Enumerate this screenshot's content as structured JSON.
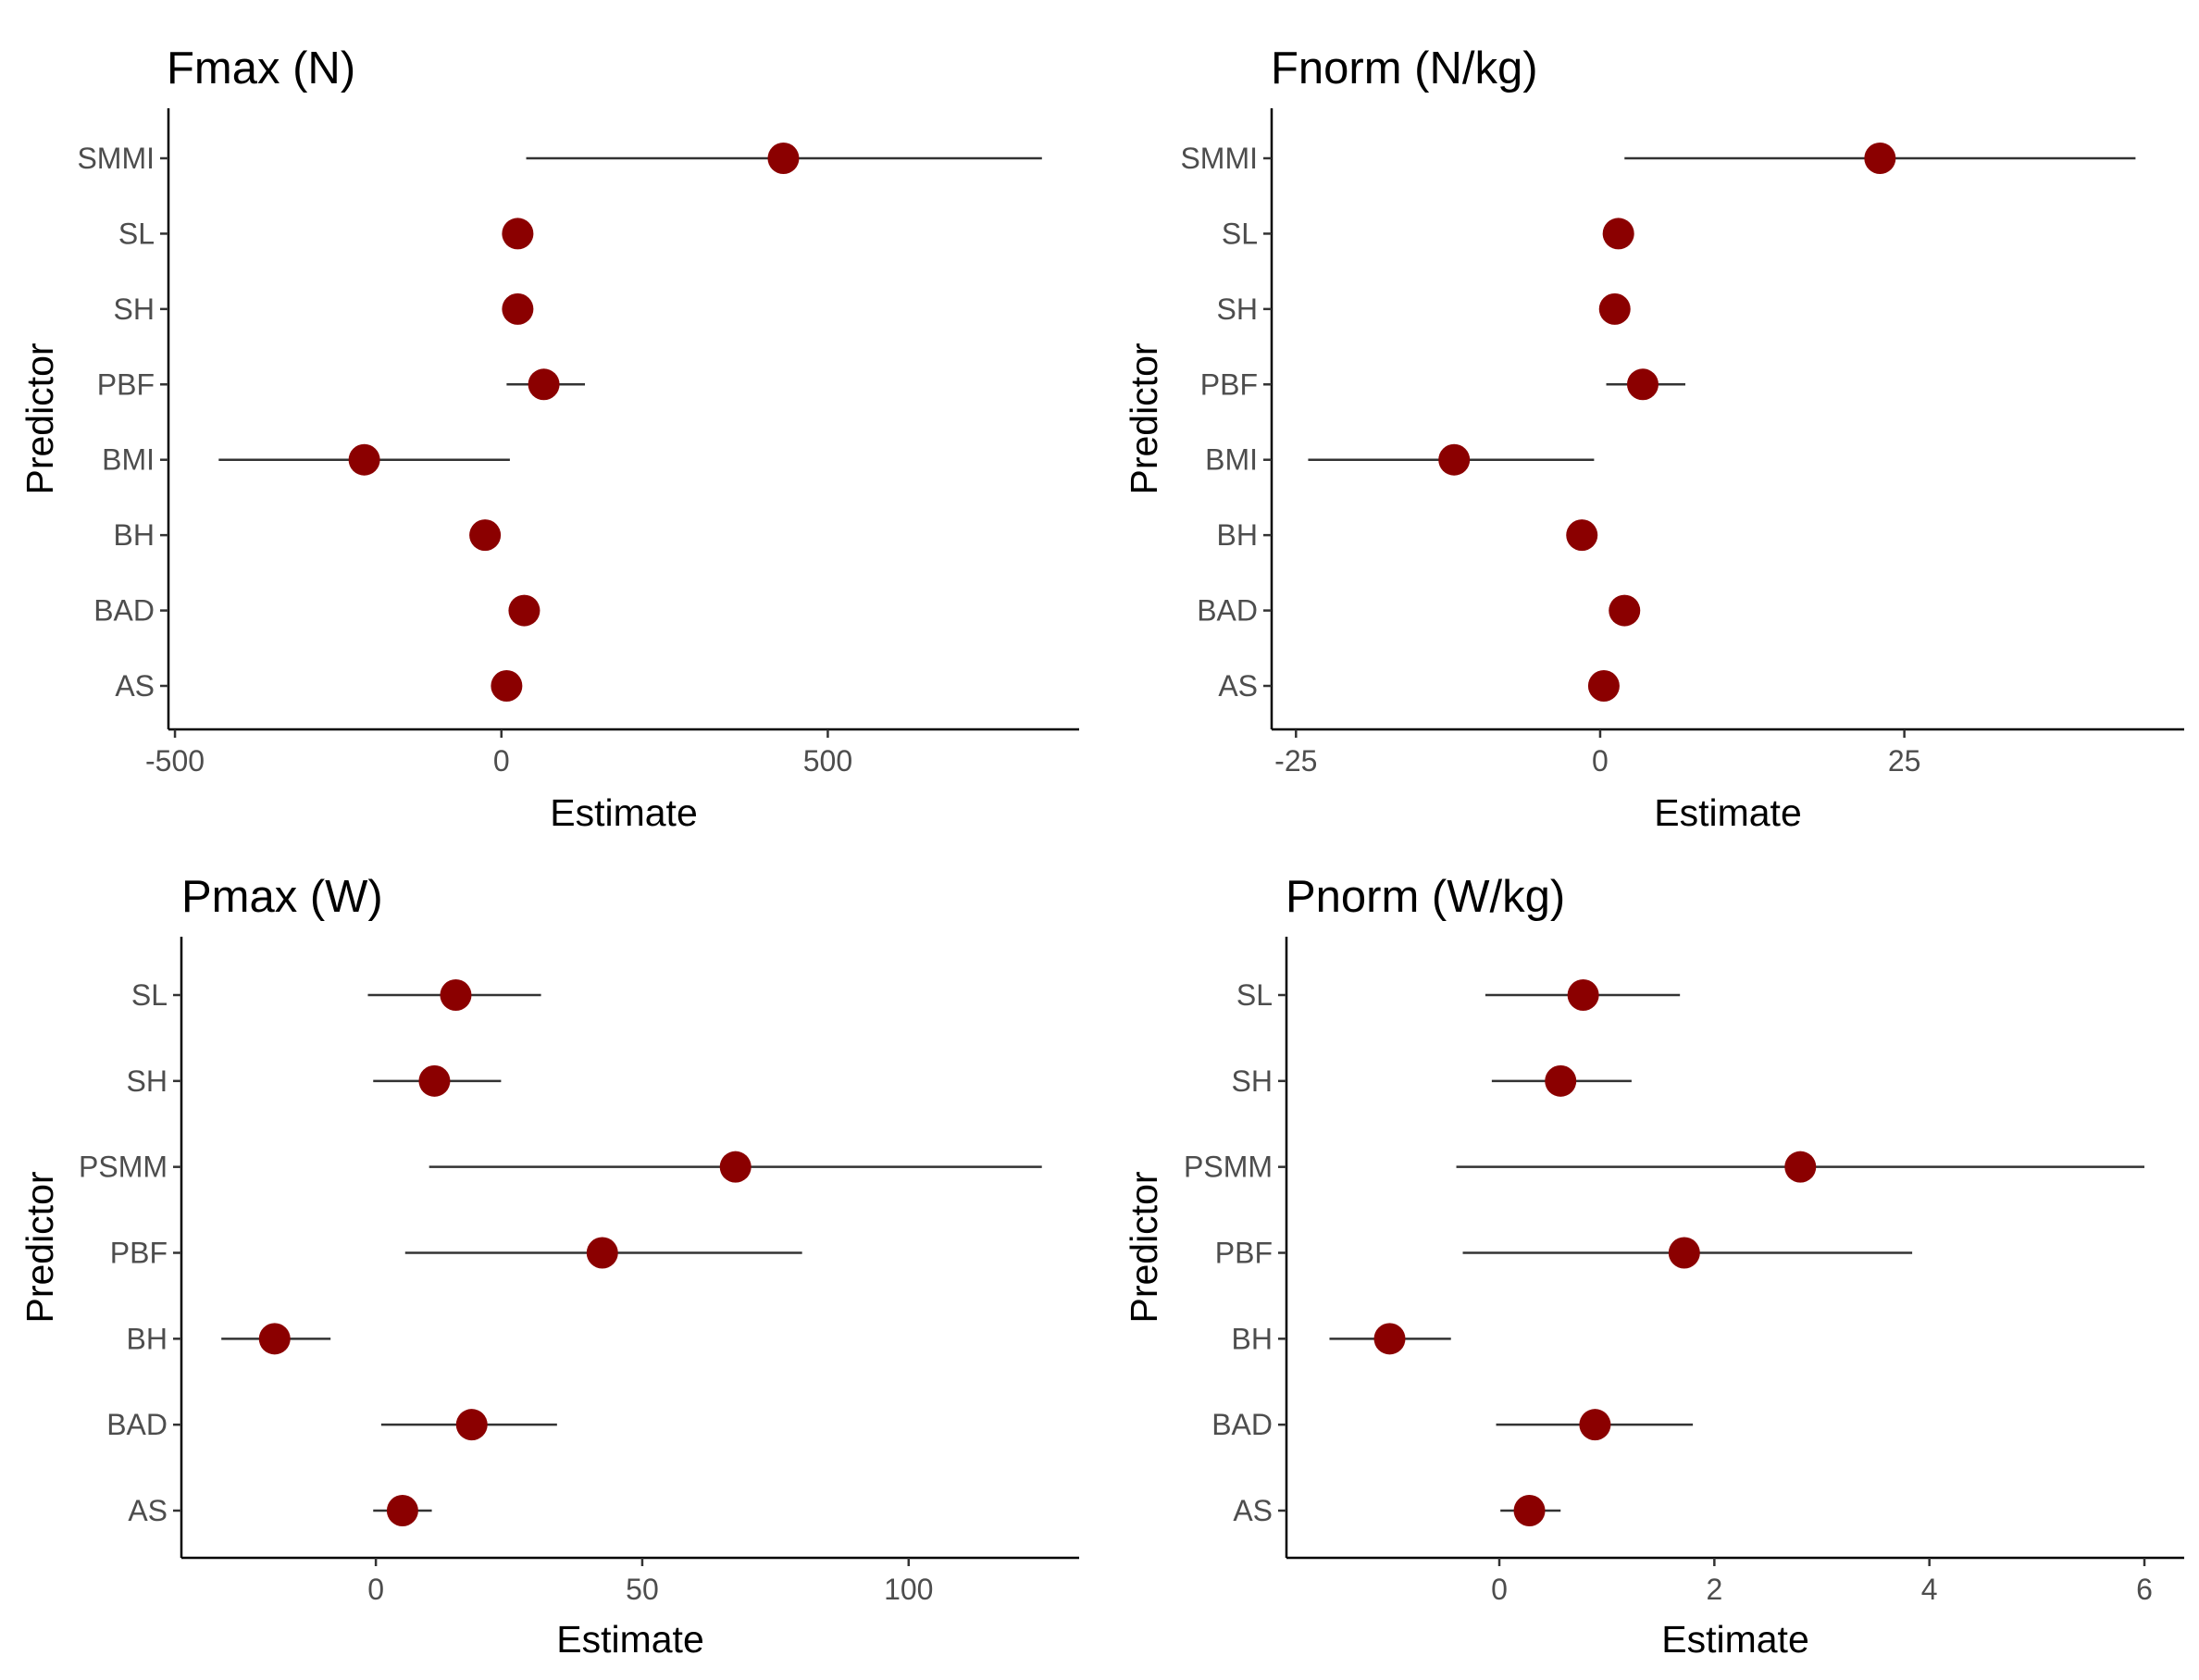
{
  "chart_data": [
    {
      "type": "dot-whisker",
      "title": "Fmax (N)",
      "xlabel": "Estimate",
      "ylabel": "Predictor",
      "xlim": [
        -510,
        885
      ],
      "xticks": [
        -500,
        0,
        500
      ],
      "xtick_labels": [
        "-500",
        "0",
        "500"
      ],
      "grid": false,
      "color": "#8b0000",
      "categories": [
        "SMMI",
        "SL",
        "SH",
        "PBF",
        "BMI",
        "BH",
        "BAD",
        "AS"
      ],
      "estimates": [
        432,
        25,
        25,
        65,
        -210,
        -25,
        35,
        8
      ],
      "ci_low": [
        38,
        null,
        null,
        8,
        -433,
        null,
        null,
        null
      ],
      "ci_high": [
        828,
        null,
        null,
        128,
        13,
        null,
        null,
        null
      ]
    },
    {
      "type": "dot-whisker",
      "title": "Fnorm (N/kg)",
      "xlabel": "Estimate",
      "ylabel": "Predictor",
      "xlim": [
        -27,
        48
      ],
      "xticks": [
        -25,
        0,
        25
      ],
      "xtick_labels": [
        "-25",
        "0",
        "25"
      ],
      "grid": false,
      "color": "#8b0000",
      "categories": [
        "SMMI",
        "SL",
        "SH",
        "PBF",
        "BMI",
        "BH",
        "BAD",
        "AS"
      ],
      "estimates": [
        23,
        1.5,
        1.2,
        3.5,
        -12,
        -1.5,
        2,
        0.3
      ],
      "ci_low": [
        2,
        null,
        null,
        0.5,
        -24,
        null,
        null,
        null
      ],
      "ci_high": [
        44,
        null,
        null,
        7,
        -0.5,
        null,
        null,
        null
      ]
    },
    {
      "type": "dot-whisker",
      "title": "Pmax (W)",
      "xlabel": "Estimate",
      "ylabel": "Predictor",
      "xlim": [
        -36.5,
        132
      ],
      "xticks": [
        0,
        50,
        100
      ],
      "xtick_labels": [
        "0",
        "50",
        "100"
      ],
      "grid": false,
      "color": "#8b0000",
      "categories": [
        "SL",
        "SH",
        "PSMM",
        "PBF",
        "BH",
        "BAD",
        "AS"
      ],
      "estimates": [
        15,
        11,
        67.5,
        42.5,
        -19,
        18,
        5
      ],
      "ci_low": [
        -1.5,
        -0.5,
        10,
        5.5,
        -29,
        1,
        -0.5
      ],
      "ci_high": [
        31,
        23.5,
        125,
        80,
        -8.5,
        34,
        10.5
      ]
    },
    {
      "type": "dot-whisker",
      "title": "Pnorm (W/kg)",
      "xlabel": "Estimate",
      "ylabel": "Predictor",
      "xlim": [
        -1.98,
        6.37
      ],
      "xticks": [
        0,
        2,
        4,
        6
      ],
      "xtick_labels": [
        "0",
        "2",
        "4",
        "6"
      ],
      "grid": false,
      "color": "#8b0000",
      "categories": [
        "SL",
        "SH",
        "PSMM",
        "PBF",
        "BH",
        "BAD",
        "AS"
      ],
      "estimates": [
        0.78,
        0.57,
        2.8,
        1.72,
        -1.02,
        0.89,
        0.28
      ],
      "ci_low": [
        -0.13,
        -0.07,
        -0.4,
        -0.34,
        -1.58,
        -0.03,
        0.01
      ],
      "ci_high": [
        1.68,
        1.23,
        6,
        3.84,
        -0.45,
        1.8,
        0.57
      ]
    }
  ]
}
